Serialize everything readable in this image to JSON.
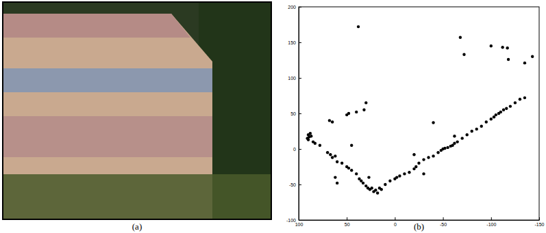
{
  "chart_data": [
    {
      "type": "image",
      "title": "(a)"
    },
    {
      "type": "scatter",
      "title": "(b)",
      "color": "#000000",
      "marker": "circle",
      "x": [
        90,
        89,
        91,
        88,
        90,
        87,
        85,
        83,
        78,
        70,
        67,
        65,
        62,
        60,
        55,
        50,
        48,
        45,
        40,
        37,
        35,
        33,
        30,
        28,
        26,
        24,
        22,
        20,
        18,
        16,
        14,
        10,
        5,
        0,
        -2,
        -5,
        -10,
        -15,
        -20,
        -22,
        -25,
        -30,
        -35,
        -40,
        -45,
        -48,
        -50,
        -52,
        -55,
        -58,
        -60,
        -62,
        -65,
        -70,
        -75,
        -80,
        -85,
        -90,
        -95,
        -100,
        -103,
        -105,
        -108,
        -110,
        -113,
        -116,
        -120,
        -125,
        -130,
        -135,
        38,
        -68,
        -72,
        -100,
        -112,
        -117,
        -118,
        -135,
        -143,
        -62,
        48,
        50,
        45,
        60,
        62,
        65,
        68,
        30,
        32,
        40,
        -40,
        -20,
        -30,
        27
      ],
      "y": [
        20,
        17,
        15,
        22,
        13,
        18,
        10,
        8,
        5,
        -5,
        -8,
        -12,
        -10,
        -18,
        -20,
        -25,
        -27,
        -30,
        -35,
        -42,
        -45,
        -48,
        -52,
        -55,
        -57,
        -55,
        -60,
        -58,
        -62,
        -55,
        -57,
        -50,
        -45,
        -42,
        -40,
        -38,
        -35,
        -33,
        -28,
        -25,
        -20,
        -15,
        -12,
        -10,
        -5,
        -2,
        0,
        1,
        2,
        4,
        5,
        8,
        10,
        15,
        20,
        25,
        28,
        32,
        38,
        42,
        45,
        48,
        50,
        52,
        55,
        57,
        60,
        65,
        70,
        72,
        172,
        157,
        133,
        145,
        143,
        142,
        126,
        121,
        130,
        18,
        50,
        48,
        5,
        -48,
        -40,
        38,
        40,
        65,
        55,
        52,
        37,
        -8,
        -35,
        -40
      ],
      "xlim": [
        100,
        -150
      ],
      "ylim": [
        -100,
        200
      ],
      "xticks": [
        100,
        50,
        0,
        -50,
        -100,
        -150
      ],
      "yticks": [
        -100,
        -50,
        0,
        50,
        100,
        150,
        200
      ]
    }
  ]
}
